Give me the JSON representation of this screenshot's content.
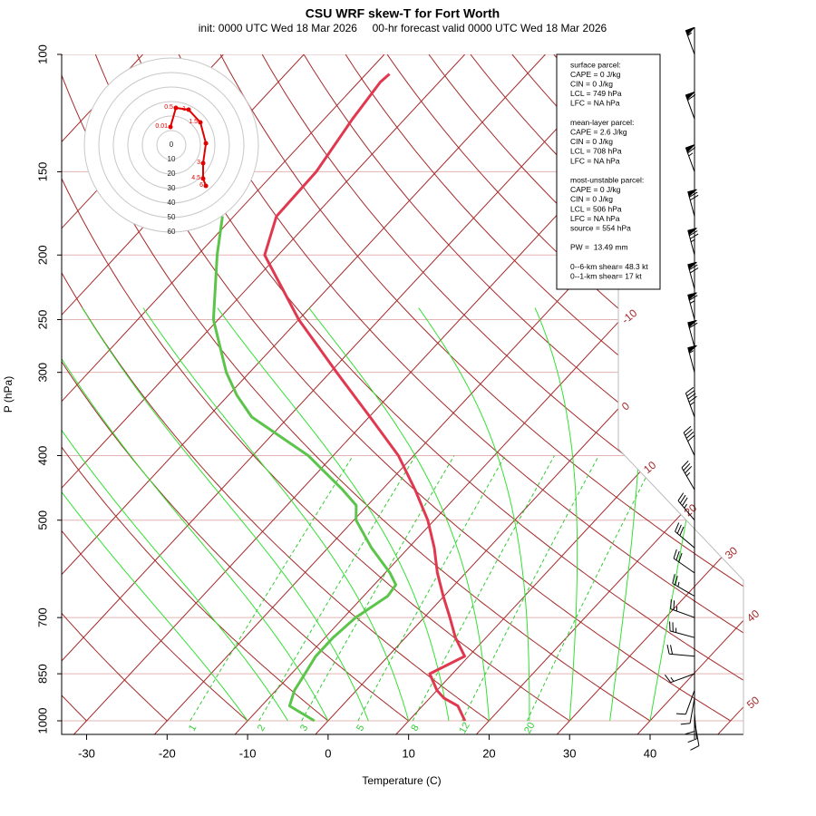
{
  "chart_data": {
    "type": "skewt",
    "title": "CSU WRF skew-T for Fort Worth",
    "subtitle": "init: 0000 UTC Wed 18 Mar 2026     00-hr forecast valid 0000 UTC Wed 18 Mar 2026",
    "x_label": "Temperature (C)",
    "y_label": "P (hPa)",
    "xlim": [
      -33.1,
      51.6
    ],
    "xticks": [
      -30,
      -20,
      -10,
      0,
      10,
      20,
      30,
      40
    ],
    "ylim": [
      1000,
      100
    ],
    "yticks": [
      100,
      150,
      200,
      250,
      300,
      400,
      500,
      700,
      850,
      1000
    ],
    "log_y": true,
    "grid_color": "#e3b4b4",
    "isotherms": [
      -110,
      -100,
      -90,
      -80,
      -70,
      -60,
      -50,
      -40,
      -30,
      -20,
      -10,
      0,
      10,
      20,
      30,
      40,
      50
    ],
    "isotherm_labels": [
      -10,
      0,
      10,
      20,
      30,
      40,
      50
    ],
    "isotherm_color": "#a52a2a",
    "dry_adiabats": [
      -40,
      -30,
      -20,
      -10,
      0,
      10,
      20,
      30,
      40,
      50,
      60,
      70,
      80,
      90,
      100,
      110,
      120,
      130,
      140,
      150,
      160,
      170
    ],
    "dry_adiabat_color": "#a52a2a",
    "moist_adiabats": [
      -10,
      -5,
      0,
      5,
      10,
      15,
      20,
      25,
      30,
      35,
      40
    ],
    "moist_adiabat_color": "#33e033",
    "mixing_ratios": [
      1,
      2,
      3,
      5,
      8,
      12,
      20
    ],
    "mixing_ratio_color": "#33cc33",
    "temperature": {
      "color": "#e0394f",
      "pressure": [
        1000,
        950,
        925,
        900,
        850,
        800,
        750,
        700,
        650,
        600,
        550,
        500,
        450,
        400,
        350,
        300,
        250,
        200,
        175,
        150,
        125,
        110,
        107
      ],
      "values": [
        17.0,
        14.4,
        11.8,
        10.0,
        7.2,
        9.5,
        6.2,
        3.2,
        -0.1,
        -3.5,
        -6.8,
        -10.8,
        -15.9,
        -21.9,
        -29.9,
        -39.2,
        -50.0,
        -61.7,
        -64.7,
        -64.9,
        -66.5,
        -67.3,
        -67.1
      ]
    },
    "dewpoint": {
      "color": "#5cc44a",
      "pressure": [
        1000,
        950,
        900,
        850,
        800,
        750,
        700,
        650,
        625,
        600,
        550,
        500,
        475,
        450,
        400,
        350,
        325,
        300,
        250,
        200,
        175
      ],
      "values": [
        -1.7,
        -6.5,
        -7.7,
        -8.3,
        -9.0,
        -9.0,
        -8.5,
        -7.0,
        -7.3,
        -9.4,
        -14.6,
        -19.7,
        -21.4,
        -24.9,
        -33.1,
        -44.6,
        -48.9,
        -52.9,
        -60.6,
        -67.6,
        -71.4
      ]
    },
    "wind": {
      "pressure": [
        100,
        125,
        150,
        175,
        200,
        225,
        250,
        275,
        300,
        350,
        400,
        450,
        500,
        550,
        600,
        650,
        700,
        750,
        800,
        850,
        900,
        925,
        950,
        975,
        1000
      ],
      "speed": [
        55,
        60,
        65,
        70,
        75,
        70,
        65,
        60,
        55,
        45,
        40,
        35,
        35,
        30,
        30,
        25,
        25,
        25,
        20,
        15,
        10,
        10,
        10,
        10,
        10
      ],
      "direction": [
        340,
        340,
        340,
        345,
        345,
        345,
        345,
        345,
        345,
        340,
        335,
        330,
        320,
        310,
        305,
        300,
        290,
        285,
        275,
        250,
        200,
        190,
        180,
        175,
        170
      ]
    },
    "hodograph": {
      "color": "#e00000",
      "ring_labels": [
        0,
        10,
        20,
        30,
        40,
        50,
        60
      ],
      "heights": [
        0.01,
        0.5,
        1,
        1.5,
        null,
        3,
        4.5,
        6
      ],
      "u": [
        -0.6,
        3.1,
        11.9,
        20,
        23.8,
        21.9,
        21.9,
        23.8
      ],
      "v": [
        12.5,
        25.6,
        24.4,
        15.6,
        1.2,
        -12.5,
        -23.1,
        -28.1
      ]
    },
    "info_box": [
      [
        "surface parcel:",
        "CAPE = 0 J/kg",
        "CIN = 0 J/kg",
        "LCL = 749 hPa",
        "LFC = NA hPa"
      ],
      [
        "mean-layer parcel:",
        "CAPE = 2.6 J/kg",
        "CIN = 0 J/kg",
        "LCL = 708 hPa",
        "LFC = NA hPa"
      ],
      [
        "most-unstable parcel:",
        "CAPE = 0 J/kg",
        "CIN = 0 J/kg",
        "LCL = 506 hPa",
        "LFC = NA hPa",
        "source = 554 hPa"
      ],
      [
        "PW =  13.49 mm"
      ],
      [
        "0--6-km shear= 48.3 kt",
        "0--1-km shear= 17 kt"
      ]
    ]
  }
}
